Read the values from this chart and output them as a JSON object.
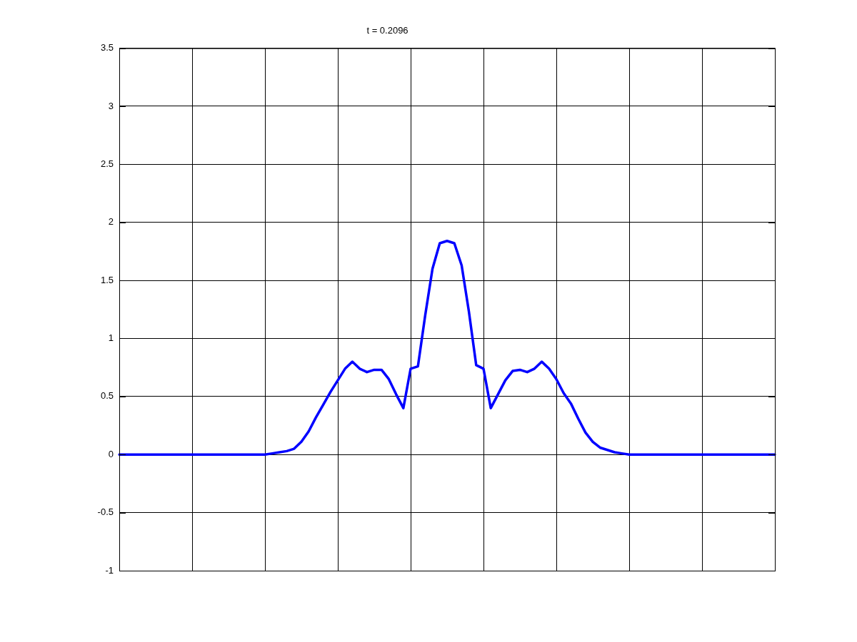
{
  "chart_data": {
    "type": "line",
    "title": "t = 0.2096",
    "categories": [
      null,
      null,
      null,
      null,
      null,
      null,
      null,
      null,
      null,
      null,
      null,
      null,
      null,
      null,
      null,
      null,
      null,
      null,
      null,
      null,
      null,
      null,
      null,
      null,
      null,
      null,
      null,
      null,
      null,
      null,
      null,
      null,
      null,
      null,
      null,
      null,
      null,
      null,
      null,
      null,
      null,
      null,
      null,
      null,
      null,
      null,
      null,
      null,
      null,
      null,
      null,
      null,
      null,
      null,
      null,
      null,
      null,
      null,
      null,
      null,
      null,
      null,
      null,
      null,
      null,
      null,
      null,
      null,
      null,
      null,
      null,
      null,
      null,
      null,
      null,
      null,
      null,
      null,
      null,
      null,
      null,
      null,
      null,
      null,
      null,
      null,
      null,
      null,
      null,
      null,
      null
    ],
    "ylim": [
      -1,
      3.5
    ],
    "yticks": [
      -1,
      -0.5,
      0,
      0.5,
      1,
      1.5,
      2,
      2.5,
      3,
      3.5
    ],
    "grid": true,
    "line_style": "solid",
    "series": [
      {
        "color": "#0000ff",
        "values": [
          0,
          0,
          0,
          0,
          0,
          0,
          0,
          0,
          0,
          0,
          0,
          0,
          0,
          0,
          0,
          0,
          0,
          0,
          0,
          0,
          0,
          0.01,
          0.02,
          0.03,
          0.05,
          0.11,
          0.2,
          0.32,
          0.43,
          0.54,
          0.64,
          0.74,
          0.8,
          0.74,
          0.71,
          0.73,
          0.73,
          0.65,
          0.52,
          0.4,
          0.74,
          0.76,
          1.2,
          1.6,
          1.82,
          1.84,
          1.82,
          1.63,
          1.23,
          0.77,
          0.74,
          0.4,
          0.52,
          0.64,
          0.72,
          0.73,
          0.71,
          0.74,
          0.8,
          0.74,
          0.65,
          0.53,
          0.44,
          0.31,
          0.19,
          0.11,
          0.06,
          0.04,
          0.02,
          0.01,
          0,
          0,
          0,
          0,
          0,
          0,
          0,
          0,
          0,
          0,
          0,
          0,
          0,
          0,
          0,
          0,
          0,
          0,
          0,
          0,
          0
        ]
      }
    ]
  }
}
